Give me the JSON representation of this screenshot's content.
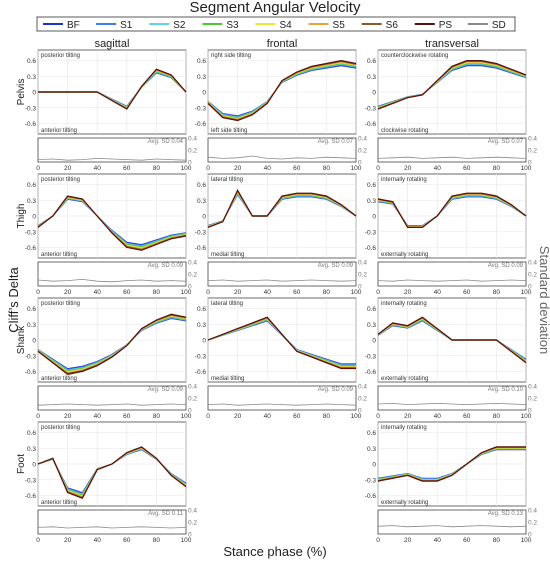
{
  "figure": {
    "title": "Segment Angular Velocity",
    "ylabel_left": "Cliff’s Delta",
    "ylabel_right": "Standard deviation",
    "xlabel": "Stance phase (%)",
    "columns": [
      "sagittal",
      "frontal",
      "transversal"
    ],
    "rows": [
      "Pelvis",
      "Thigh",
      "Shank",
      "Foot"
    ]
  },
  "legend": [
    {
      "name": "BF",
      "color": "#1f2fd6"
    },
    {
      "name": "S1",
      "color": "#3f7de8"
    },
    {
      "name": "S2",
      "color": "#5fd0e8"
    },
    {
      "name": "S3",
      "color": "#4cc832"
    },
    {
      "name": "S4",
      "color": "#e8e83a"
    },
    {
      "name": "S5",
      "color": "#e8a63a"
    },
    {
      "name": "S6",
      "color": "#8a5a2a"
    },
    {
      "name": "PS",
      "color": "#5a1010"
    },
    {
      "name": "SD",
      "color": "#8a8a8a"
    }
  ],
  "chart_data": {
    "type": "line",
    "x": [
      0,
      10,
      20,
      30,
      40,
      50,
      60,
      70,
      80,
      90,
      100
    ],
    "xlim": [
      0,
      100
    ],
    "ylim_delta": [
      -0.8,
      0.8
    ],
    "delta_ticks": [
      "0.6",
      "0.3",
      "0",
      "-0.3",
      "-0.6"
    ],
    "ylim_sd": [
      0,
      0.4
    ],
    "sd_ticks": [
      "0.4",
      "0.2",
      "0"
    ],
    "x_ticks": [
      "0",
      "20",
      "40",
      "60",
      "80",
      "100"
    ],
    "panels": [
      {
        "row": "Pelvis",
        "col": "sagittal",
        "top": "posterior tilting",
        "bottom": "anterior tilting",
        "avg_sd": "Avg. SD 0.04",
        "series": [
          0,
          0,
          0,
          0,
          0,
          -0.15,
          -0.3,
          0.1,
          0.4,
          0.3,
          0
        ],
        "sd": [
          0.04,
          0.05,
          0.03,
          0.04,
          0.06,
          0.05,
          0.04,
          0.03,
          0.05,
          0.04,
          0.03
        ]
      },
      {
        "row": "Pelvis",
        "col": "frontal",
        "top": "right side tilting",
        "bottom": "left side tilting",
        "avg_sd": "Avg. SD 0.07",
        "series": [
          -0.2,
          -0.45,
          -0.5,
          -0.4,
          -0.2,
          0.2,
          0.35,
          0.45,
          0.5,
          0.55,
          0.5
        ],
        "sd": [
          0.08,
          0.06,
          0.07,
          0.1,
          0.06,
          0.05,
          0.07,
          0.06,
          0.08,
          0.07,
          0.06
        ]
      },
      {
        "row": "Pelvis",
        "col": "transversal",
        "top": "counterclockwise rotating",
        "bottom": "clockwise rotating",
        "avg_sd": "Avg. SD 0.07",
        "series": [
          -0.3,
          -0.2,
          -0.1,
          -0.05,
          0.2,
          0.45,
          0.55,
          0.55,
          0.5,
          0.4,
          0.3
        ],
        "sd": [
          0.06,
          0.07,
          0.08,
          0.06,
          0.07,
          0.08,
          0.06,
          0.07,
          0.08,
          0.07,
          0.06
        ]
      },
      {
        "row": "Thigh",
        "col": "sagittal",
        "top": "posterior tilting",
        "bottom": "anterior tilting",
        "avg_sd": "Avg. SD 0.09",
        "series": [
          -0.2,
          0,
          0.35,
          0.3,
          0,
          -0.3,
          -0.55,
          -0.6,
          -0.5,
          -0.4,
          -0.35
        ],
        "sd": [
          0.1,
          0.08,
          0.09,
          0.11,
          0.08,
          0.07,
          0.09,
          0.1,
          0.08,
          0.09,
          0.08
        ]
      },
      {
        "row": "Thigh",
        "col": "frontal",
        "top": "lateral tilting",
        "bottom": "medial tilting",
        "avg_sd": "Avg. SD 0.09",
        "series": [
          -0.2,
          -0.1,
          0.45,
          0,
          0,
          0.35,
          0.4,
          0.4,
          0.35,
          0.2,
          0
        ],
        "sd": [
          0.09,
          0.1,
          0.08,
          0.09,
          0.1,
          0.08,
          0.09,
          0.1,
          0.09,
          0.08,
          0.09
        ]
      },
      {
        "row": "Thigh",
        "col": "transversal",
        "top": "internally rotating",
        "bottom": "externally rotating",
        "avg_sd": "Avg. SD 0.09",
        "series": [
          0.3,
          0.25,
          -0.2,
          -0.2,
          0,
          0.35,
          0.4,
          0.4,
          0.35,
          0.2,
          0
        ],
        "sd": [
          0.09,
          0.08,
          0.1,
          0.09,
          0.08,
          0.09,
          0.1,
          0.08,
          0.09,
          0.1,
          0.09
        ]
      },
      {
        "row": "Shank",
        "col": "sagittal",
        "top": "posterior tilting",
        "bottom": "anterior tilting",
        "avg_sd": "Avg. SD 0.09",
        "series": [
          -0.2,
          -0.4,
          -0.6,
          -0.55,
          -0.45,
          -0.3,
          -0.1,
          0.2,
          0.35,
          0.45,
          0.4
        ],
        "sd": [
          0.08,
          0.09,
          0.1,
          0.09,
          0.08,
          0.09,
          0.1,
          0.08,
          0.09,
          0.1,
          0.09
        ]
      },
      {
        "row": "Shank",
        "col": "frontal",
        "top": "lateral tilting",
        "bottom": "medial tilting",
        "avg_sd": "Avg. SD 0.09",
        "series": [
          0,
          0.1,
          0.2,
          0.3,
          0.4,
          0.1,
          -0.2,
          -0.3,
          -0.4,
          -0.5,
          -0.5
        ],
        "sd": [
          0.09,
          0.1,
          0.08,
          0.09,
          0.1,
          0.09,
          0.08,
          0.09,
          0.1,
          0.09,
          0.08
        ]
      },
      {
        "row": "Shank",
        "col": "transversal",
        "top": "internally rotating",
        "bottom": "externally rotating",
        "avg_sd": "Avg. SD 0.10",
        "series": [
          0.1,
          0.3,
          0.25,
          0.4,
          0.2,
          0,
          0,
          0,
          0,
          -0.2,
          -0.4
        ],
        "sd": [
          0.1,
          0.11,
          0.09,
          0.1,
          0.11,
          0.1,
          0.09,
          0.1,
          0.11,
          0.1,
          0.09
        ]
      },
      {
        "row": "Foot",
        "col": "sagittal",
        "top": "posterior tilting",
        "bottom": "anterior tilting",
        "avg_sd": "Avg. SD 0.11",
        "series": [
          0,
          0.1,
          -0.5,
          -0.6,
          -0.1,
          0,
          0.2,
          0.3,
          0.1,
          -0.2,
          -0.4
        ],
        "sd": [
          0.11,
          0.12,
          0.1,
          0.11,
          0.12,
          0.1,
          0.11,
          0.12,
          0.11,
          0.1,
          0.11
        ]
      },
      {
        "row": "Foot",
        "col": "transversal",
        "top": "internally rotating",
        "bottom": "externally rotating",
        "avg_sd": "Avg. SD 0.13",
        "series": [
          -0.3,
          -0.25,
          -0.2,
          -0.3,
          -0.3,
          -0.2,
          0,
          0.2,
          0.3,
          0.3,
          0.3
        ],
        "sd": [
          0.13,
          0.14,
          0.12,
          0.13,
          0.14,
          0.12,
          0.13,
          0.14,
          0.13,
          0.12,
          0.13
        ]
      }
    ]
  }
}
